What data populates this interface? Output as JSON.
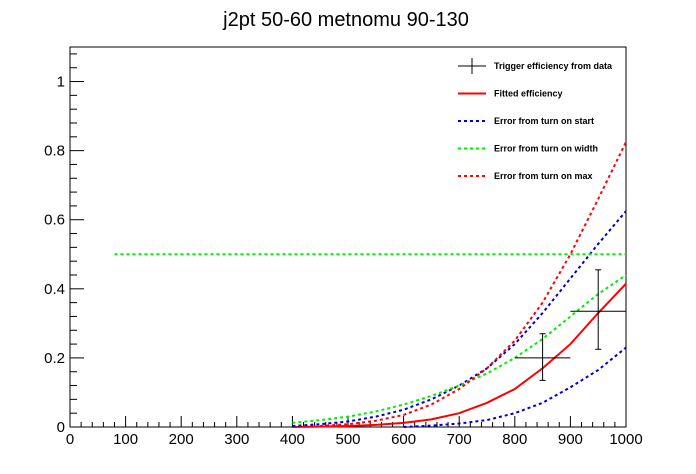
{
  "chart_data": {
    "type": "line",
    "title": "j2pt 50-60 metnomu 90-130",
    "xlabel": "",
    "ylabel": "",
    "xlim": [
      0,
      1000
    ],
    "ylim": [
      0,
      1.1
    ],
    "x_ticks": [
      0,
      100,
      200,
      300,
      400,
      500,
      600,
      700,
      800,
      900,
      1000
    ],
    "x_tick_labels": [
      "0",
      "100",
      "200",
      "300",
      "400",
      "500",
      "600",
      "700",
      "800",
      "900",
      "1000"
    ],
    "y_ticks": [
      0,
      0.2,
      0.4,
      0.6,
      0.8,
      1
    ],
    "y_tick_labels": [
      "0",
      "0.2",
      "0.4",
      "0.6",
      "0.8",
      "1"
    ],
    "grid": false,
    "legend_position": "top-right",
    "data_points": [
      {
        "x": 850,
        "y": 0.2,
        "xerr": 50,
        "yerr_low": 0.065,
        "yerr_high": 0.07
      },
      {
        "x": 950,
        "y": 0.335,
        "xerr": 50,
        "yerr_low": 0.11,
        "yerr_high": 0.12
      },
      {
        "x": 750,
        "y": 0.0,
        "xerr": 50,
        "yerr_low": 0,
        "yerr_high": 0.0
      }
    ],
    "series": [
      {
        "name": "Trigger efficiency from data",
        "color": "#000000",
        "style": "markers"
      },
      {
        "name": "Fitted efficiency",
        "color": "#ff0000",
        "style": "solid",
        "x": [
          400,
          450,
          500,
          550,
          600,
          650,
          700,
          750,
          800,
          850,
          900,
          950,
          1000
        ],
        "y": [
          0.0,
          0.001,
          0.003,
          0.006,
          0.012,
          0.022,
          0.04,
          0.07,
          0.11,
          0.17,
          0.24,
          0.33,
          0.415
        ]
      },
      {
        "name": "Error from turn on start",
        "color": "#0000cc",
        "style": "dashed",
        "x": [
          400,
          450,
          500,
          550,
          600,
          650,
          700,
          750,
          800,
          850,
          900,
          950,
          1000
        ],
        "y": [
          0.003,
          0.008,
          0.016,
          0.03,
          0.05,
          0.08,
          0.12,
          0.17,
          0.24,
          0.33,
          0.43,
          0.53,
          0.625
        ]
      },
      {
        "name": "Error from turn on width",
        "color": "#00ee00",
        "style": "dashed",
        "x": [
          400,
          450,
          500,
          550,
          600,
          650,
          700,
          750,
          800,
          850,
          900,
          950,
          1000
        ],
        "y": [
          0.012,
          0.02,
          0.03,
          0.045,
          0.065,
          0.09,
          0.12,
          0.155,
          0.2,
          0.255,
          0.32,
          0.385,
          0.44
        ],
        "extra": {
          "flat_y": 0.5,
          "flat_from": 80
        }
      },
      {
        "name": "Error from turn on max",
        "color": "#ff0000",
        "style": "dashed",
        "x": [
          450,
          500,
          550,
          600,
          650,
          700,
          750,
          800,
          850,
          900,
          950,
          1000
        ],
        "y": [
          0.003,
          0.008,
          0.018,
          0.035,
          0.065,
          0.11,
          0.17,
          0.25,
          0.36,
          0.5,
          0.66,
          0.825
        ]
      },
      {
        "name": "",
        "color": "#0000cc",
        "style": "dashed",
        "x": [
          600,
          650,
          700,
          750,
          800,
          850,
          900,
          950,
          1000
        ],
        "y": [
          0.0,
          0.004,
          0.01,
          0.02,
          0.04,
          0.07,
          0.115,
          0.165,
          0.23
        ]
      }
    ]
  }
}
